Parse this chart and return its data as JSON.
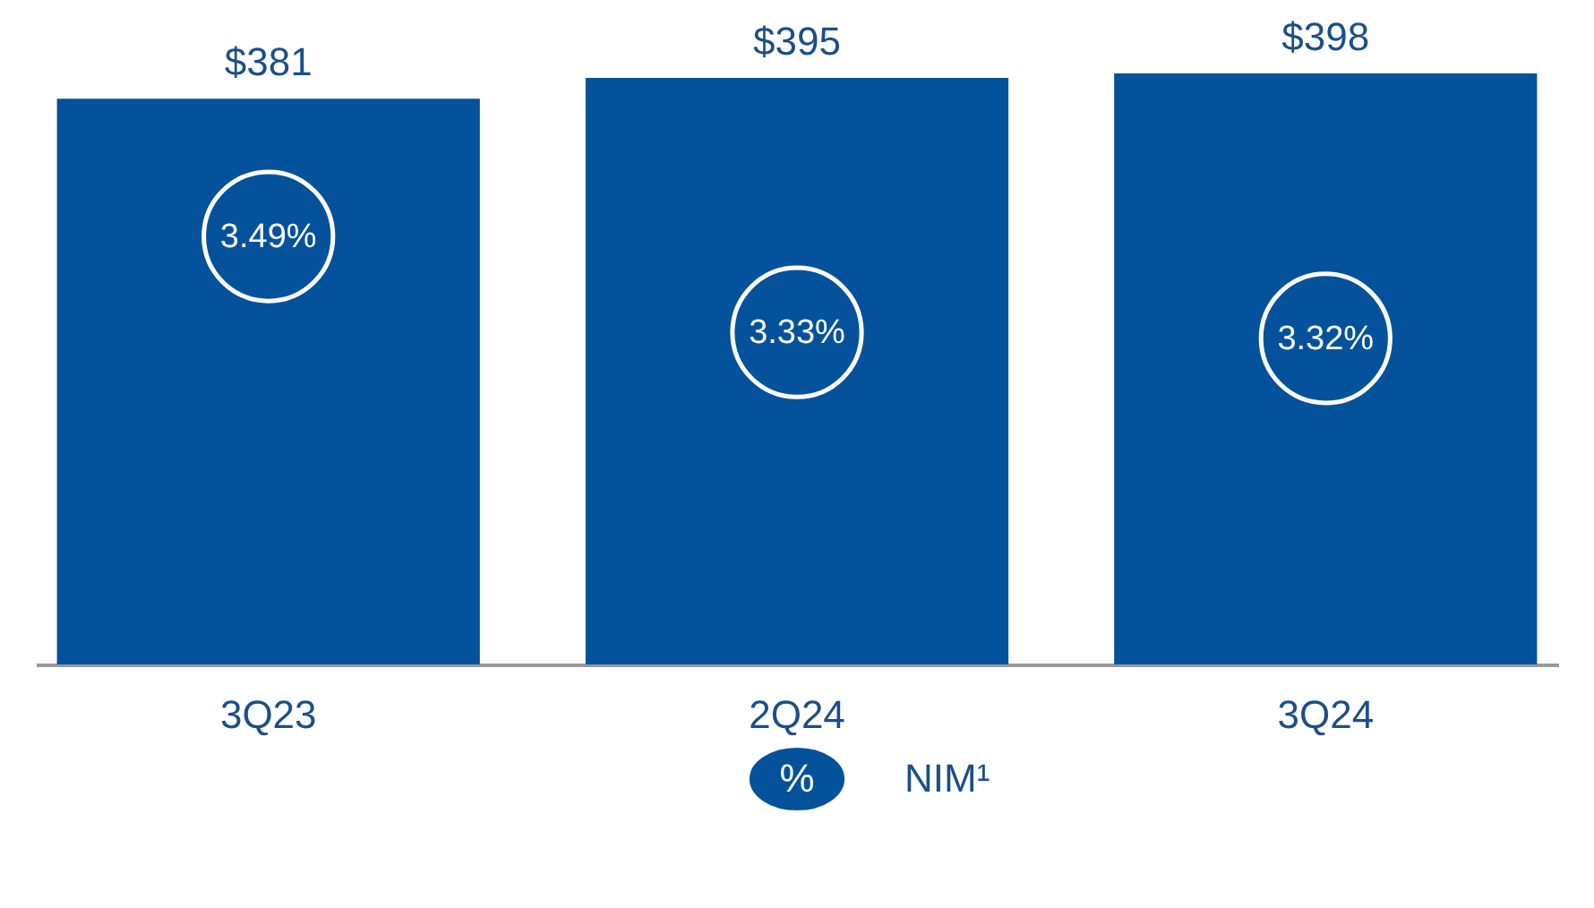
{
  "chart_data": {
    "type": "bar",
    "categories": [
      "3Q23",
      "2Q24",
      "3Q24"
    ],
    "series": [
      {
        "color": "#03529b",
        "values": [
          381,
          395,
          398
        ],
        "value_labels": [
          "$381",
          "$395",
          "$398"
        ]
      },
      {
        "type": "scatter",
        "name": "NIM¹",
        "axis": "y2",
        "color": "#ffffff",
        "values": [
          3.49,
          3.33,
          3.32
        ],
        "value_labels": [
          "3.49%",
          "3.33%",
          "3.32%"
        ]
      }
    ],
    "annotations": [
      "%"
    ],
    "legend": "bottom",
    "marker": "circle",
    "grid": false
  }
}
